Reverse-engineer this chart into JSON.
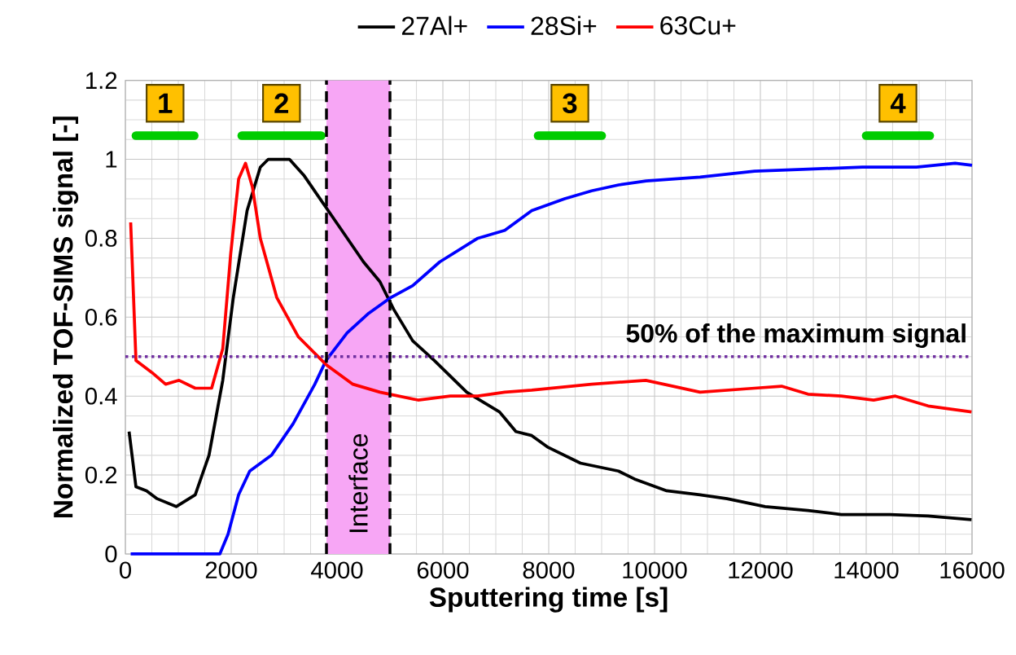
{
  "chart_data": {
    "type": "line",
    "xlabel": "Sputtering time [s]",
    "ylabel": "Normalized TOF-SIMS signal [-]",
    "xlim": [
      0,
      16000
    ],
    "xticks": [
      0,
      2000,
      4000,
      6000,
      8000,
      10000,
      12000,
      14000,
      16000
    ],
    "ylim": [
      0,
      1.2
    ],
    "yticks": [
      0,
      0.2,
      0.4,
      0.6,
      0.8,
      1,
      1.2
    ],
    "grid": true,
    "legend": "top",
    "line_style": "solid",
    "marker": "none",
    "series": [
      {
        "name": "27Al+",
        "color": "#000000",
        "x": [
          70,
          200,
          400,
          600,
          960,
          1320,
          1580,
          1840,
          2040,
          2300,
          2550,
          2700,
          3100,
          3370,
          3730,
          4090,
          4500,
          4810,
          5070,
          5430,
          5840,
          6450,
          7070,
          7380,
          7680,
          7990,
          8600,
          9320,
          9620,
          10230,
          10860,
          11370,
          12090,
          12900,
          13530,
          14450,
          15170,
          15990
        ],
        "values": [
          0.31,
          0.17,
          0.16,
          0.14,
          0.12,
          0.15,
          0.25,
          0.44,
          0.65,
          0.87,
          0.98,
          1.0,
          1.0,
          0.96,
          0.89,
          0.82,
          0.74,
          0.69,
          0.62,
          0.54,
          0.49,
          0.41,
          0.36,
          0.31,
          0.3,
          0.27,
          0.23,
          0.21,
          0.19,
          0.16,
          0.15,
          0.14,
          0.12,
          0.11,
          0.1,
          0.1,
          0.096,
          0.087
        ]
      },
      {
        "name": "28Si+",
        "color": "#0000ff",
        "x": [
          100,
          1000,
          1785,
          1940,
          2140,
          2350,
          2760,
          3170,
          3580,
          3790,
          4190,
          4600,
          5020,
          5430,
          5940,
          6660,
          7170,
          7680,
          8300,
          8810,
          9320,
          9840,
          10860,
          11890,
          12900,
          13930,
          14950,
          15680,
          16000
        ],
        "values": [
          0,
          0,
          0,
          0.05,
          0.15,
          0.21,
          0.25,
          0.33,
          0.43,
          0.49,
          0.56,
          0.61,
          0.65,
          0.68,
          0.74,
          0.8,
          0.82,
          0.87,
          0.9,
          0.92,
          0.935,
          0.945,
          0.955,
          0.97,
          0.975,
          0.98,
          0.98,
          0.99,
          0.985
        ]
      },
      {
        "name": "1",
        "type": "step",
        "color": "#00cc00",
        "x": [
          200,
          1300
        ],
        "values": [
          1.06,
          1.06
        ]
      },
      {
        "name": "2",
        "type": "step",
        "color": "#00cc00",
        "x": [
          2200,
          3700
        ],
        "values": [
          1.06,
          1.06
        ]
      },
      {
        "name": "3",
        "type": "step",
        "color": "#00cc00",
        "x": [
          7800,
          9000
        ],
        "values": [
          1.06,
          1.06
        ]
      },
      {
        "name": "4",
        "type": "step",
        "color": "#00cc00",
        "x": [
          14000,
          15200
        ],
        "values": [
          1.06,
          1.06
        ]
      },
      {
        "name": "63Cu+",
        "color": "#ff0000",
        "x": [
          100,
          200,
          500,
          760,
          1015,
          1320,
          1630,
          1840,
          1990,
          2140,
          2270,
          2400,
          2550,
          2860,
          3270,
          3790,
          4300,
          4810,
          5530,
          6140,
          6660,
          7170,
          7680,
          8810,
          9835,
          10350,
          10860,
          11890,
          12400,
          12900,
          13530,
          14140,
          14550,
          15170,
          15990
        ],
        "values": [
          0.84,
          0.49,
          0.46,
          0.43,
          0.44,
          0.42,
          0.42,
          0.52,
          0.76,
          0.95,
          0.99,
          0.93,
          0.8,
          0.65,
          0.55,
          0.48,
          0.43,
          0.41,
          0.39,
          0.4,
          0.4,
          0.41,
          0.415,
          0.43,
          0.44,
          0.425,
          0.41,
          0.42,
          0.425,
          0.405,
          0.4,
          0.39,
          0.4,
          0.375,
          0.36
        ]
      }
    ],
    "ref_lines": [
      {
        "axis": "y",
        "value": 0.5,
        "label": "50% of the maximum signal",
        "color": "#7030a0",
        "line_style": "dotted"
      },
      {
        "axis": "x",
        "value": 3800,
        "color": "#000000",
        "line_style": "dashed"
      },
      {
        "axis": "x",
        "value": 5000,
        "color": "#000000",
        "line_style": "dashed"
      }
    ],
    "bands": [
      {
        "axis": "x",
        "from": 3800,
        "to": 5000,
        "label": "Interface",
        "color": "#f7a6f5"
      }
    ]
  }
}
